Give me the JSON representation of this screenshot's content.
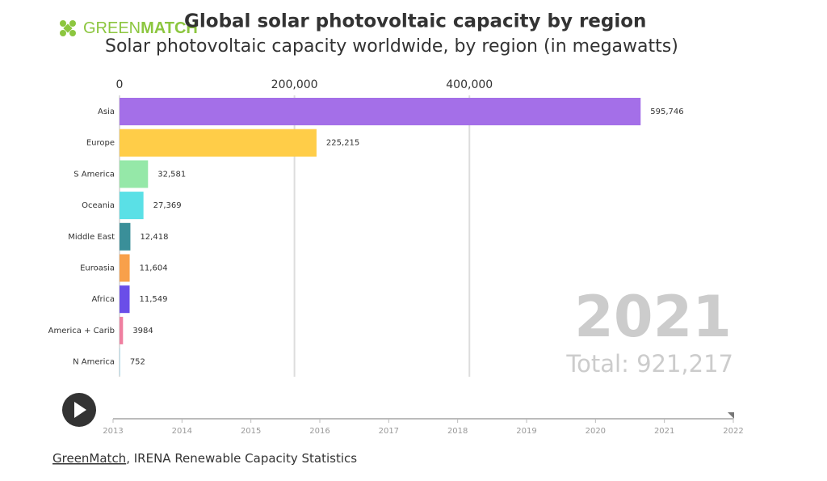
{
  "brand": [
    "GREEN",
    "MATCH"
  ],
  "source": {
    "link": "GreenMatch",
    "text": ", IRENA Renewable Capacity Statistics"
  },
  "chart_data": {
    "type": "bar",
    "orientation": "horizontal",
    "title": "Global solar photovoltaic capacity by region",
    "subtitle": "Solar photovoltaic capacity worldwide, by region (in megawatts)",
    "categories": [
      "Asia",
      "Europe",
      "S America",
      "Oceania",
      "Middle East",
      "Euroasia",
      "Africa",
      "America + Carib",
      "N America"
    ],
    "values": [
      595746,
      225215,
      32581,
      27369,
      12418,
      11604,
      11549,
      3984,
      752
    ],
    "value_labels": [
      "595,746",
      "225,215",
      "32,581",
      "27,369",
      "12,418",
      "11,604",
      "11,549",
      "3984",
      "752"
    ],
    "colors": [
      "#a46fe8",
      "#ffcd48",
      "#95e8a8",
      "#5ae0e6",
      "#3a8f99",
      "#f8a04a",
      "#6a4ee8",
      "#ef7fa0",
      "#aee0f0"
    ],
    "xlim": [
      0,
      650000
    ],
    "xticks": [
      0,
      {
        "value": 200000,
        "label": "200,000"
      },
      {
        "value": 400000,
        "label": "400,000"
      }
    ],
    "grid": true,
    "year": "2021",
    "total": "Total: 921,217",
    "timeline_ticks": [
      2013,
      2014,
      2015,
      2016,
      2017,
      2018,
      2019,
      2020,
      2021,
      2022
    ]
  }
}
